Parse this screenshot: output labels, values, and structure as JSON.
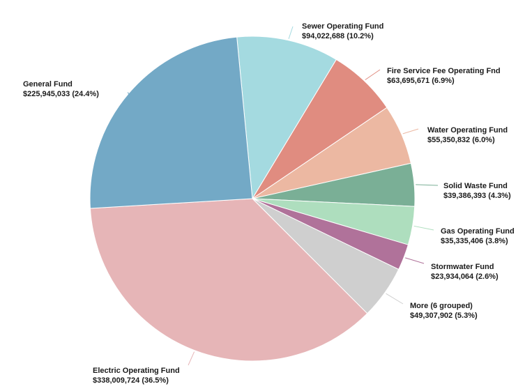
{
  "chart_data": {
    "type": "pie",
    "start_angle_deg": -5.5,
    "direction": "clockwise",
    "slices": [
      {
        "label": "Sewer Operating Fund",
        "value": 94022688,
        "display_value": "$94,022,688",
        "percent": "10.2%",
        "color": "#a4dae0"
      },
      {
        "label": "Fire Service Fee Operating Fnd",
        "value": 63695671,
        "display_value": "$63,695,671",
        "percent": "6.9%",
        "color": "#e08c80"
      },
      {
        "label": "Water Operating Fund",
        "value": 55350832,
        "display_value": "$55,350,832",
        "percent": "6.0%",
        "color": "#ecb8a2"
      },
      {
        "label": "Solid Waste Fund",
        "value": 39386393,
        "display_value": "$39,386,393",
        "percent": "4.3%",
        "color": "#7aaf96"
      },
      {
        "label": "Gas Operating Fund",
        "value": 35335406,
        "display_value": "$35,335,406",
        "percent": "3.8%",
        "color": "#aedebe"
      },
      {
        "label": "Stormwater Fund",
        "value": 23934064,
        "display_value": "$23,934,064",
        "percent": "2.6%",
        "color": "#b0729a"
      },
      {
        "label": "More (6 grouped)",
        "value": 49307902,
        "display_value": "$49,307,902",
        "percent": "5.3%",
        "color": "#cfcfcf"
      },
      {
        "label": "Electric Operating Fund",
        "value": 338009724,
        "display_value": "$338,009,724",
        "percent": "36.5%",
        "color": "#e6b5b7"
      },
      {
        "label": "General Fund",
        "value": 225945033,
        "display_value": "$225,945,033",
        "percent": "24.4%",
        "color": "#73a9c6"
      }
    ]
  }
}
